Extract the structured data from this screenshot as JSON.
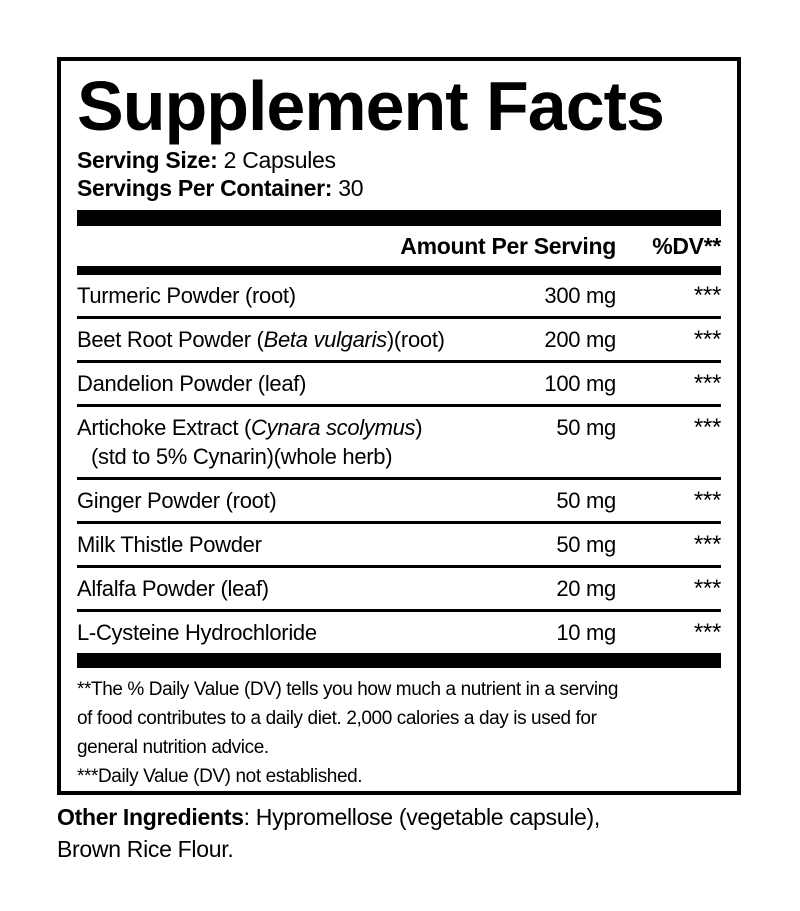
{
  "panel": {
    "title": "Supplement Facts",
    "serving_size_label": "Serving Size:",
    "serving_size_value": "2 Capsules",
    "servings_per_container_label": "Servings Per Container:",
    "servings_per_container_value": "30"
  },
  "table": {
    "amount_header": "Amount Per Serving",
    "dv_header": "%DV**",
    "rows": [
      {
        "name_pre": "Turmeric Powder (root)",
        "amount": "300 mg",
        "dv": "***"
      },
      {
        "name_pre": "Beet Root Powder (",
        "name_italic": "Beta vulgaris",
        "name_post": ")(root)",
        "amount": "200 mg",
        "dv": "***"
      },
      {
        "name_pre": "Dandelion Powder (leaf)",
        "amount": "100 mg",
        "dv": "***"
      },
      {
        "name_pre": "Artichoke Extract (",
        "name_italic": "Cynara scolymus",
        "name_post": ")",
        "line2": "(std to 5% Cynarin)(whole herb)",
        "amount": "50 mg",
        "dv": "***"
      },
      {
        "name_pre": "Ginger Powder (root)",
        "amount": "50 mg",
        "dv": "***"
      },
      {
        "name_pre": "Milk Thistle Powder",
        "amount": "50 mg",
        "dv": "***"
      },
      {
        "name_pre": "Alfalfa Powder (leaf)",
        "amount": "20 mg",
        "dv": "***"
      },
      {
        "name_pre": "L-Cysteine Hydrochloride",
        "amount": "10 mg",
        "dv": "***"
      }
    ]
  },
  "footnotes": {
    "dv_note_lines": [
      "**The % Daily Value (DV) tells you how much a nutrient in a serving",
      "of food contributes to a daily diet. 2,000 calories a day is used for",
      "general nutrition advice."
    ],
    "dv_note_full": "**The % Daily Value (DV) tells you how much a nutrient in a serving of food contributes to a daily diet. 2,000 calories a day is used for general nutrition advice.",
    "established_note": "***Daily Value (DV) not established."
  },
  "other_ingredients": {
    "label": "Other Ingredients",
    "line1_rest": ": Hypromellose (vegetable capsule),",
    "line2": "Brown Rice Flour."
  },
  "colors": {
    "ink": "#000000",
    "background": "#ffffff"
  }
}
